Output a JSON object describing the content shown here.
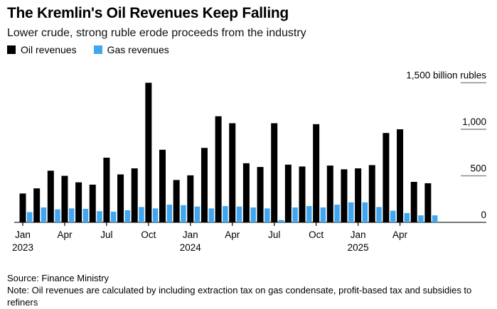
{
  "header": {
    "title": "The Kremlin's Oil Revenues Keep Falling",
    "subtitle": "Lower crude, strong ruble erode proceeds from the industry"
  },
  "legend": {
    "oil_label": "Oil revenues",
    "gas_label": "Gas revenues"
  },
  "colors": {
    "oil": "#000000",
    "gas": "#41a6f0",
    "baseline": "#4a4a4a",
    "gridline": "#8c8c8c",
    "tick": "#000000"
  },
  "footer": {
    "source": "Source: Finance Ministry",
    "note": "Note: Oil revenues are calculated by including extraction tax on gas condensate, profit-based tax and subsidies to refiners"
  },
  "chart_data": {
    "type": "bar",
    "title": "The Kremlin's Oil Revenues Keep Falling",
    "subtitle": "Lower crude, strong ruble erode proceeds from the industry",
    "unit": "billion rubles",
    "legend_position": "top-left",
    "grid": "right-tick-segments",
    "ylim": [
      0,
      1500
    ],
    "yticks": [
      {
        "value": 0,
        "label": "0"
      },
      {
        "value": 500,
        "label": "500"
      },
      {
        "value": 1000,
        "label": "1,000"
      },
      {
        "value": 1500,
        "label": "1,500 billion rubles"
      }
    ],
    "categories": [
      "Jan 2023",
      "Feb 2023",
      "Mar 2023",
      "Apr 2023",
      "May 2023",
      "Jun 2023",
      "Jul 2023",
      "Aug 2023",
      "Sep 2023",
      "Oct 2023",
      "Nov 2023",
      "Dec 2023",
      "Jan 2024",
      "Feb 2024",
      "Mar 2024",
      "Apr 2024",
      "May 2024",
      "Jun 2024",
      "Jul 2024",
      "Aug 2024",
      "Sep 2024",
      "Oct 2024",
      "Nov 2024",
      "Dec 2024",
      "Jan 2025",
      "Feb 2025",
      "Mar 2025",
      "Apr 2025",
      "May 2025",
      "Jun 2025"
    ],
    "series": [
      {
        "name": "Oil revenues",
        "color": "#000000",
        "values": [
          310,
          365,
          555,
          500,
          430,
          405,
          695,
          515,
          580,
          1500,
          780,
          455,
          505,
          800,
          1140,
          1065,
          635,
          595,
          1065,
          620,
          600,
          1055,
          610,
          570,
          580,
          615,
          960,
          1000,
          435,
          420
        ]
      },
      {
        "name": "Gas revenues",
        "color": "#41a6f0",
        "values": [
          110,
          160,
          140,
          150,
          145,
          120,
          115,
          130,
          165,
          150,
          190,
          185,
          170,
          150,
          175,
          170,
          160,
          150,
          25,
          160,
          175,
          160,
          190,
          215,
          215,
          165,
          125,
          100,
          75,
          75
        ]
      }
    ],
    "xticks": [
      {
        "index": 0,
        "month": "Jan",
        "year": "2023"
      },
      {
        "index": 3,
        "month": "Apr"
      },
      {
        "index": 6,
        "month": "Jul"
      },
      {
        "index": 9,
        "month": "Oct"
      },
      {
        "index": 12,
        "month": "Jan",
        "year": "2024"
      },
      {
        "index": 15,
        "month": "Apr"
      },
      {
        "index": 18,
        "month": "Jul"
      },
      {
        "index": 21,
        "month": "Oct"
      },
      {
        "index": 24,
        "month": "Jan",
        "year": "2025"
      },
      {
        "index": 27,
        "month": "Apr"
      }
    ]
  }
}
